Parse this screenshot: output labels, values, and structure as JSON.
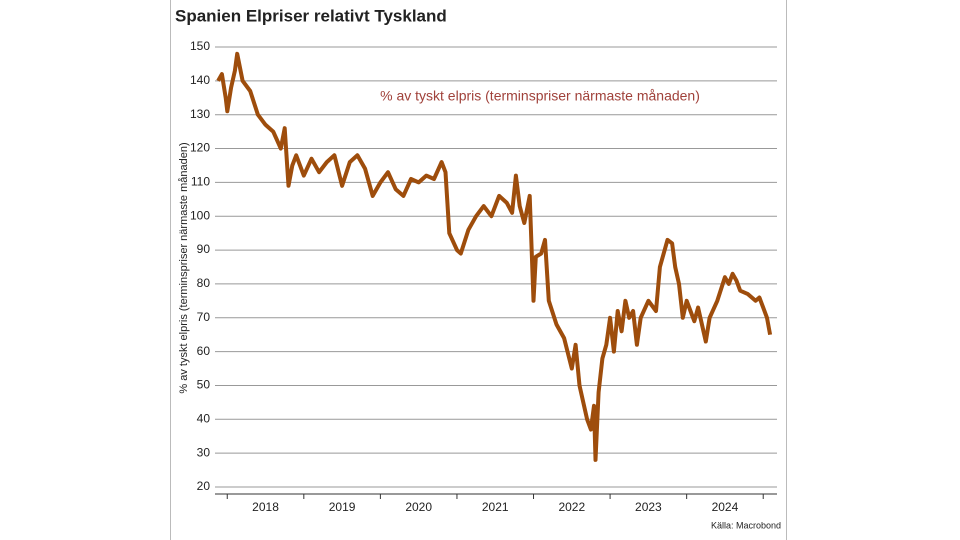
{
  "chart_data": {
    "type": "line",
    "title": "Spanien Elpriser relativt Tyskland",
    "annotation": "% av tyskt elpris (terminspriser närmaste månaden)",
    "y_label": "% av tyskt elpris (terminspriser närmaste månaden)",
    "source": "Källa: Macrobond",
    "xlim": [
      2017.84,
      2025.18
    ],
    "xticks": [
      2018,
      2019,
      2020,
      2021,
      2022,
      2023,
      2024,
      2025
    ],
    "x_labels": [
      {
        "value": 2018.5,
        "label": "2018"
      },
      {
        "value": 2019.5,
        "label": "2019"
      },
      {
        "value": 2020.5,
        "label": "2020"
      },
      {
        "value": 2021.5,
        "label": "2021"
      },
      {
        "value": 2022.5,
        "label": "2022"
      },
      {
        "value": 2023.5,
        "label": "2023"
      },
      {
        "value": 2024.5,
        "label": "2024"
      }
    ],
    "ylim": [
      20,
      150
    ],
    "yticks": [
      20,
      30,
      40,
      50,
      60,
      70,
      80,
      90,
      100,
      110,
      120,
      130,
      140,
      150
    ],
    "grid": true,
    "series": [
      {
        "color": "#9e4d0c",
        "x": [
          2017.88,
          2017.93,
          2017.98,
          2018.0,
          2018.05,
          2018.1,
          2018.13,
          2018.2,
          2018.3,
          2018.4,
          2018.5,
          2018.6,
          2018.7,
          2018.75,
          2018.8,
          2018.85,
          2018.9,
          2019.0,
          2019.1,
          2019.2,
          2019.3,
          2019.4,
          2019.5,
          2019.6,
          2019.7,
          2019.8,
          2019.9,
          2020.0,
          2020.1,
          2020.2,
          2020.3,
          2020.4,
          2020.5,
          2020.6,
          2020.7,
          2020.8,
          2020.85,
          2020.9,
          2021.0,
          2021.05,
          2021.15,
          2021.25,
          2021.35,
          2021.45,
          2021.55,
          2021.65,
          2021.72,
          2021.77,
          2021.82,
          2021.88,
          2021.95,
          2022.0,
          2022.03,
          2022.1,
          2022.15,
          2022.2,
          2022.3,
          2022.4,
          2022.5,
          2022.55,
          2022.6,
          2022.65,
          2022.7,
          2022.75,
          2022.79,
          2022.81,
          2022.85,
          2022.9,
          2022.95,
          2023.0,
          2023.05,
          2023.1,
          2023.15,
          2023.2,
          2023.25,
          2023.3,
          2023.35,
          2023.4,
          2023.5,
          2023.6,
          2023.65,
          2023.75,
          2023.81,
          2023.85,
          2023.9,
          2023.95,
          2024.0,
          2024.05,
          2024.1,
          2024.15,
          2024.25,
          2024.3,
          2024.4,
          2024.5,
          2024.55,
          2024.6,
          2024.65,
          2024.7,
          2024.8,
          2024.9,
          2024.95,
          2025.0,
          2025.05,
          2025.09
        ],
        "values": [
          140,
          142,
          135,
          131,
          138,
          143,
          148,
          140,
          137,
          130,
          127,
          125,
          120,
          126,
          109,
          115,
          118,
          112,
          117,
          113,
          116,
          118,
          109,
          116,
          118,
          114,
          106,
          110,
          113,
          108,
          106,
          111,
          110,
          112,
          111,
          116,
          113,
          95,
          90,
          89,
          96,
          100,
          103,
          100,
          106,
          104,
          101,
          112,
          103,
          98,
          106,
          75,
          88,
          89,
          93,
          75,
          68,
          64,
          55,
          62,
          50,
          45,
          40,
          37,
          44,
          28,
          48,
          58,
          62,
          70,
          60,
          72,
          66,
          75,
          70,
          72,
          62,
          70,
          75,
          72,
          85,
          93,
          92,
          85,
          80,
          70,
          75,
          72,
          69,
          73,
          63,
          70,
          75,
          82,
          80,
          83,
          81,
          78,
          77,
          75,
          76,
          73,
          70,
          65
        ]
      }
    ]
  }
}
